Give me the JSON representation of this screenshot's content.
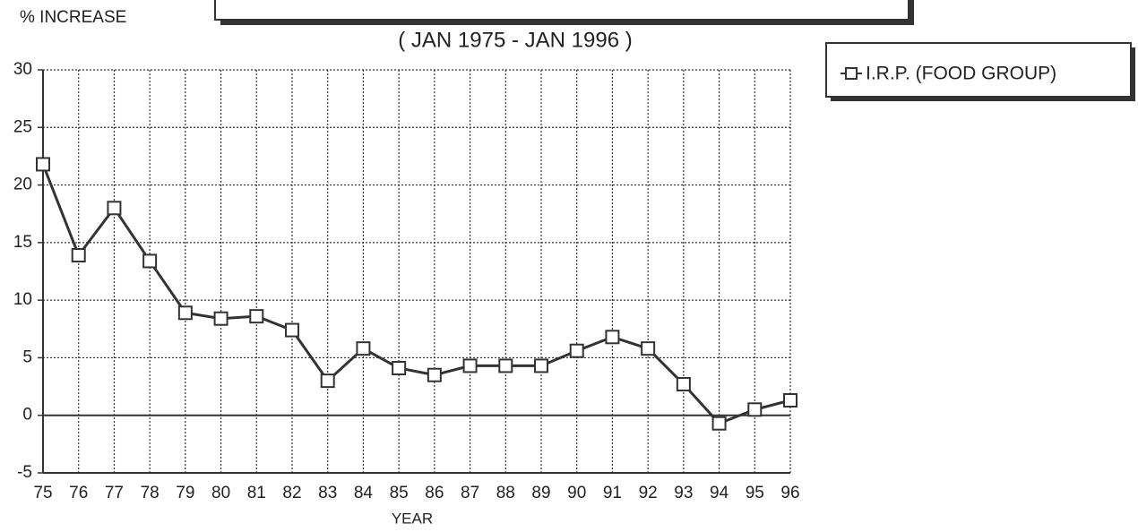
{
  "chart_data": {
    "type": "line",
    "subtitle": "( JAN 1975 - JAN 1996 )",
    "y_label": "% INCREASE",
    "x_label": "YEAR",
    "categories": [
      "75",
      "76",
      "77",
      "78",
      "79",
      "80",
      "81",
      "82",
      "83",
      "84",
      "85",
      "86",
      "87",
      "88",
      "89",
      "90",
      "91",
      "92",
      "93",
      "94",
      "95",
      "96"
    ],
    "series": [
      {
        "name": "I.R.P. (FOOD GROUP)",
        "color": "#333333",
        "values": [
          21.8,
          13.9,
          18,
          13.4,
          8.9,
          8.4,
          8.6,
          7.4,
          3.0,
          5.8,
          4.1,
          3.5,
          4.3,
          4.3,
          4.3,
          5.6,
          6.8,
          5.8,
          2.7,
          -0.7,
          0.5,
          1.3
        ]
      }
    ],
    "ylim": [
      -5,
      30
    ],
    "yticks": [
      -5,
      0,
      5,
      10,
      15,
      20,
      25,
      30
    ],
    "grid": true
  }
}
